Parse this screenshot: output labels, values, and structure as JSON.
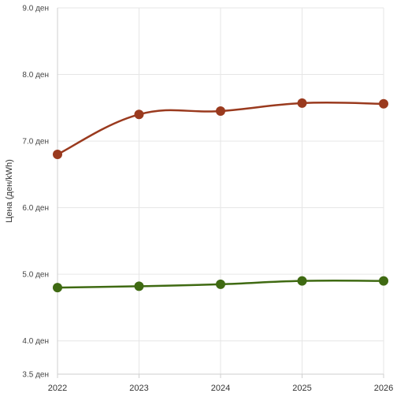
{
  "chart_data": {
    "type": "line",
    "ylabel": "Цена (ден/kWh)",
    "xlabel": "",
    "x": [
      2022,
      2023,
      2024,
      2025,
      2026
    ],
    "x_tick_labels": [
      "2022",
      "2023",
      "2024",
      "2025",
      "2026"
    ],
    "ylim": [
      3.5,
      9.0
    ],
    "y_ticks": [
      3.5,
      4.0,
      5.0,
      6.0,
      7.0,
      8.0,
      9.0
    ],
    "y_tick_labels": [
      "3.5 ден",
      "4.0 ден",
      "5.0 ден",
      "6.0 ден",
      "7.0 ден",
      "8.0 ден",
      "9.0 ден"
    ],
    "grid": true,
    "legend": "none",
    "series": [
      {
        "color": "#9a3a1e",
        "values": [
          6.8,
          7.4,
          7.45,
          7.57,
          7.56
        ]
      },
      {
        "color": "#3f6a12",
        "values": [
          4.8,
          4.82,
          4.85,
          4.9,
          4.9
        ]
      }
    ]
  }
}
